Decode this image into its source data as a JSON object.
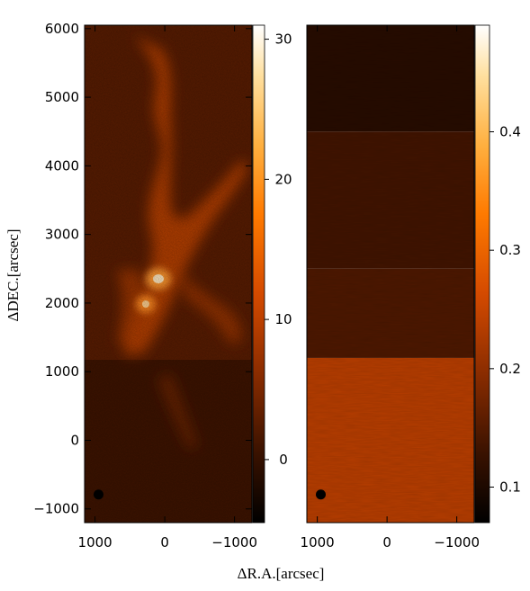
{
  "chart_data": [
    {
      "type": "heatmap",
      "panel": "left",
      "xlabel": "ΔR.A.[arcsec]",
      "ylabel": "ΔDEC.[arcsec]",
      "xlim": [
        1150,
        -1250
      ],
      "ylim": [
        -1200,
        6050
      ],
      "x_ticks": [
        1000,
        0,
        -1000
      ],
      "x_tick_labels": [
        "1000",
        "0",
        "−1000"
      ],
      "y_ticks": [
        -1000,
        0,
        1000,
        2000,
        3000,
        4000,
        5000,
        6000
      ],
      "y_tick_labels": [
        "−1000",
        "0",
        "1000",
        "2000",
        "3000",
        "4000",
        "5000",
        "6000"
      ],
      "colorbar": {
        "range": [
          -4.5,
          31
        ],
        "ticks": [
          0,
          10,
          20,
          30
        ],
        "tick_labels": [
          "0",
          "10",
          "20",
          "30"
        ],
        "colors": [
          "#000000",
          "#3a1200",
          "#8a2c00",
          "#d44a00",
          "#ff7a00",
          "#ffb040",
          "#ffe0a0",
          "#ffffff"
        ]
      },
      "beam_marker": {
        "x": 950,
        "y": -790
      },
      "bright_peaks": [
        {
          "x": 120,
          "y": 2320,
          "intensity": 30
        },
        {
          "x": 260,
          "y": 1980,
          "intensity": 26
        }
      ]
    },
    {
      "type": "heatmap",
      "panel": "right",
      "xlabel": "ΔR.A.[arcsec]",
      "xlim": [
        1150,
        -1250
      ],
      "ylim": [
        -1200,
        6050
      ],
      "x_ticks": [
        1000,
        0,
        -1000
      ],
      "x_tick_labels": [
        "1000",
        "0",
        "−1000"
      ],
      "colorbar": {
        "range": [
          0.07,
          0.49
        ],
        "ticks": [
          0.1,
          0.2,
          0.3,
          0.4
        ],
        "tick_labels": [
          "0.1",
          "0.2",
          "0.3",
          "0.4"
        ],
        "colors": [
          "#000000",
          "#3a1200",
          "#8a2c00",
          "#d44a00",
          "#ff7a00",
          "#ffb040",
          "#ffe0a0",
          "#ffffff"
        ]
      },
      "beam_marker": {
        "x": 950,
        "y": -790
      },
      "bands": [
        {
          "y_from": 6050,
          "y_to": 4500,
          "value": 0.11
        },
        {
          "y_from": 4500,
          "y_to": 2500,
          "value": 0.135
        },
        {
          "y_from": 2500,
          "y_to": 1200,
          "value": 0.145
        },
        {
          "y_from": 1200,
          "y_to": -1200,
          "value": 0.235
        }
      ]
    }
  ]
}
